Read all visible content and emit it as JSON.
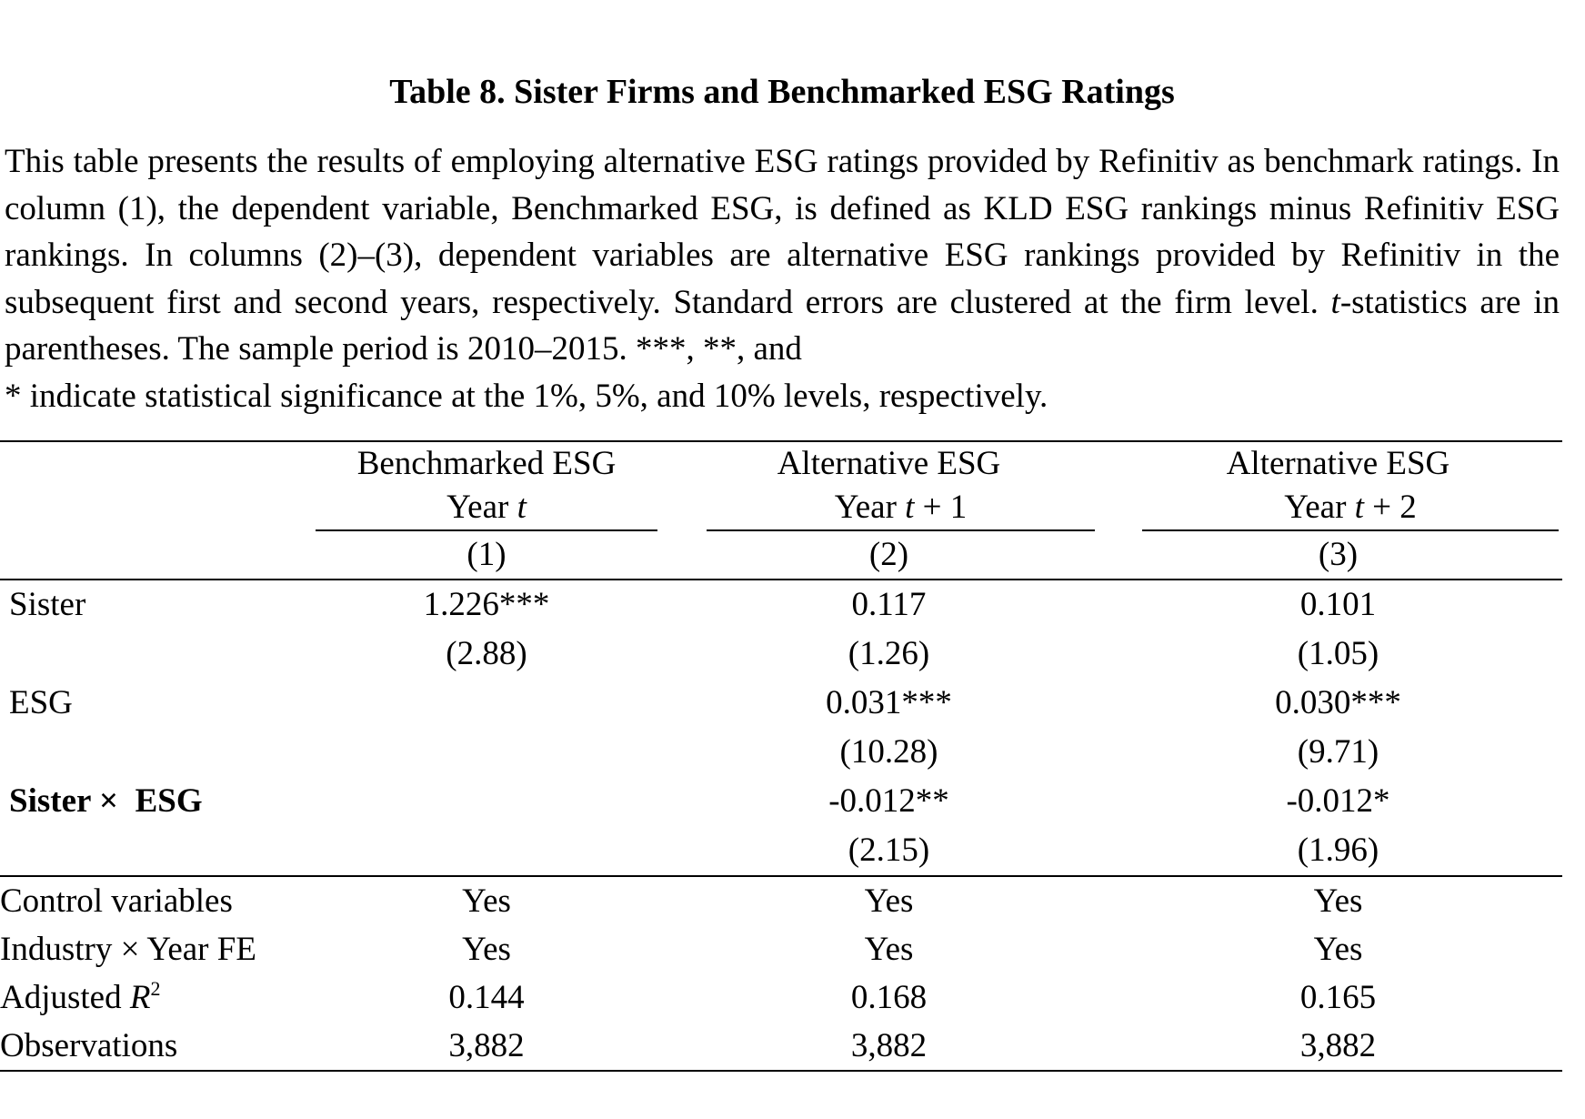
{
  "title": "Table 8. Sister Firms and Benchmarked ESG Ratings",
  "caption": {
    "part1": "This table presents the results of employing alternative ESG ratings provided by Refinitiv as benchmark ratings. In column (1), the dependent variable, Benchmarked ESG, is defined as KLD ESG rankings minus Refinitiv ESG rankings. In columns (2)–(3), dependent variables are alternative ESG rankings provided by Refinitiv in the subsequent first and second years, respectively. Standard errors are clustered at the firm level. ",
    "t_italic": "t",
    "part2": "-statistics are in parentheses. The sample period is 2010–2015. ***, **, and",
    "part3": "* indicate statistical significance at the 1%, 5%, and 10% levels, respectively."
  },
  "table": {
    "columns": [
      {
        "line1": "Benchmarked ESG",
        "year_prefix": "Year ",
        "year_var": "t",
        "year_suffix": "",
        "number": "(1)"
      },
      {
        "line1": "Alternative ESG",
        "year_prefix": "Year ",
        "year_var": "t",
        "year_suffix": " + 1",
        "number": "(2)"
      },
      {
        "line1": "Alternative ESG",
        "year_prefix": "Year ",
        "year_var": "t",
        "year_suffix": " + 2",
        "number": "(3)"
      }
    ],
    "rows": [
      {
        "label": "Sister",
        "coef": [
          "1.226***",
          "0.117",
          "0.101"
        ],
        "tstat": [
          "(2.88)",
          "(1.26)",
          "(1.05)"
        ]
      },
      {
        "label": "ESG",
        "coef": [
          "",
          "0.031***",
          "0.030***"
        ],
        "tstat": [
          "",
          "(10.28)",
          "(9.71)"
        ]
      },
      {
        "label": "Sister ×  ESG",
        "coef": [
          "",
          "-0.012**",
          "-0.012*"
        ],
        "tstat": [
          "",
          "(2.15)",
          "(1.96)"
        ]
      }
    ],
    "footer": [
      {
        "label": "Control variables",
        "values": [
          "Yes",
          "Yes",
          "Yes"
        ]
      },
      {
        "label": "Industry × Year FE",
        "values": [
          "Yes",
          "Yes",
          "Yes"
        ]
      },
      {
        "label_prefix": "Adjusted ",
        "label_var": "R",
        "label_sup": "2",
        "values": [
          "0.144",
          "0.168",
          "0.165"
        ]
      },
      {
        "label": "Observations",
        "values": [
          "3,882",
          "3,882",
          "3,882"
        ]
      }
    ]
  }
}
